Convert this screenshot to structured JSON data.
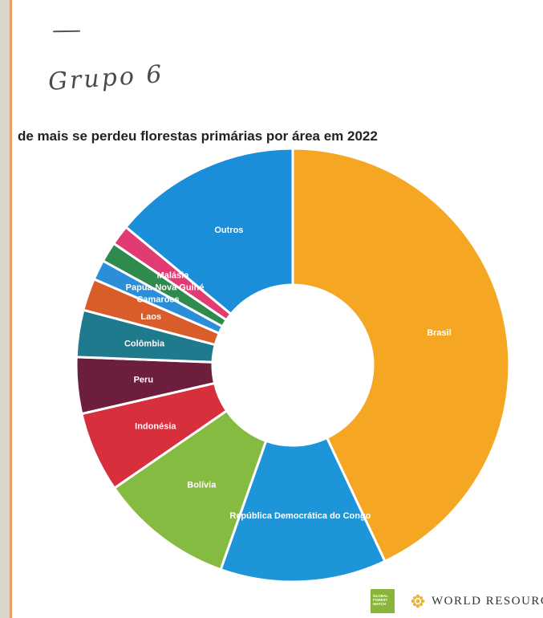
{
  "handwritten_note": "Grupo 6",
  "chart_data": {
    "type": "donut",
    "title": "de mais se perdeu florestas primárias por área em 2022",
    "slices": [
      {
        "label": "Brasil",
        "value": 43.0,
        "color": "#f5a623"
      },
      {
        "label": "República Democrática do Congo",
        "value": 12.4,
        "color": "#1f95d9"
      },
      {
        "label": "Bolívia",
        "value": 10.0,
        "color": "#86bb41"
      },
      {
        "label": "Indonésia",
        "value": 6.0,
        "color": "#d82f3c"
      },
      {
        "label": "Peru",
        "value": 4.2,
        "color": "#6e1e3d"
      },
      {
        "label": "Colômbia",
        "value": 3.5,
        "color": "#1e7a8c"
      },
      {
        "label": "Laos",
        "value": 2.4,
        "color": "#d95c2b"
      },
      {
        "label": "Camarões",
        "value": 1.5,
        "color": "#2a8fd8"
      },
      {
        "label": "Papua-Nova Guiné",
        "value": 1.5,
        "color": "#2f8a4e"
      },
      {
        "label": "Malásia",
        "value": 1.5,
        "color": "#e03c73"
      },
      {
        "label": "Outros",
        "value": 14.0,
        "color": "#1a8ed8"
      }
    ]
  },
  "logos": {
    "gfw_lines": [
      "GLOBAL",
      "FOREST",
      "WATCH"
    ],
    "wri_text": "WORLD RESOURC"
  }
}
